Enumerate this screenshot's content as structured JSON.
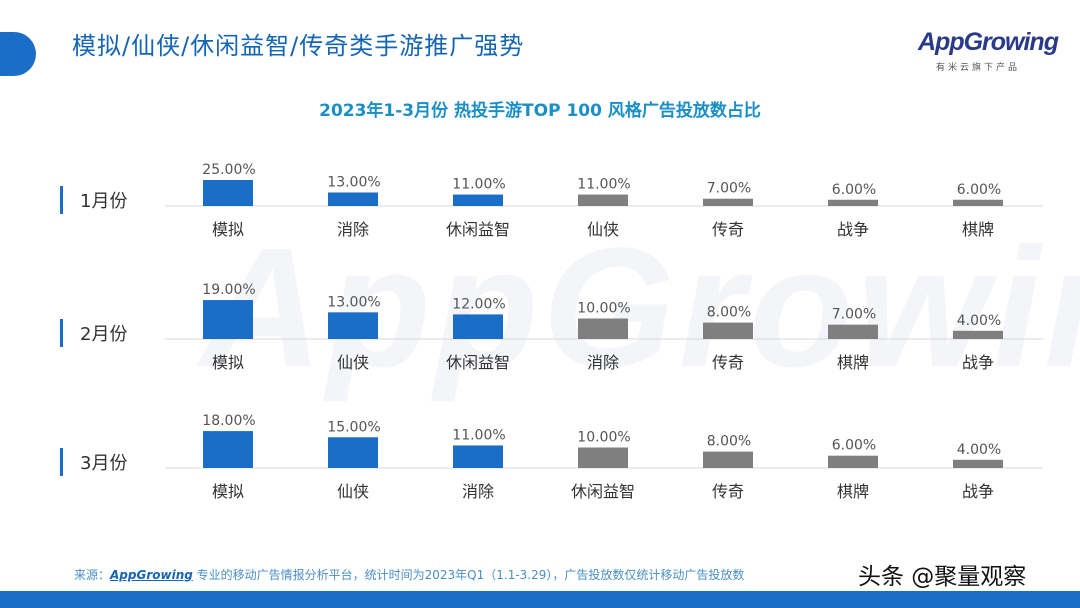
{
  "header": {
    "title": "模拟/仙侠/休闲益智/传奇类手游推广强势",
    "logo": "AppGrowing",
    "logo_sub": "有米云旗下产品"
  },
  "footer": {
    "source_label": "来源：",
    "source_brand": "AppGrowing",
    "source_text": " 专业的移动广告情报分析平台，统计时间为2023年Q1（1.1-3.29），广告投放数仅统计移动广告投放数",
    "brand": "头条 @聚量观察"
  },
  "colors": {
    "highlight": "#1a6ec7",
    "other": "#7f7f7f",
    "accent": "#1a6ec7"
  },
  "chart_data": {
    "type": "bar",
    "title": "2023年1-3月份 热投手游TOP 100 风格广告投放数占比",
    "panels": [
      {
        "label": "1月份",
        "categories": [
          "模拟",
          "消除",
          "休闲益智",
          "仙侠",
          "传奇",
          "战争",
          "棋牌"
        ],
        "values": [
          25,
          13,
          11,
          11,
          7,
          6,
          6
        ],
        "value_labels": [
          "25.00%",
          "13.00%",
          "11.00%",
          "11.00%",
          "7.00%",
          "6.00%",
          "6.00%"
        ]
      },
      {
        "label": "2月份",
        "categories": [
          "模拟",
          "仙侠",
          "休闲益智",
          "消除",
          "传奇",
          "棋牌",
          "战争"
        ],
        "values": [
          19,
          13,
          12,
          10,
          8,
          7,
          4
        ],
        "value_labels": [
          "19.00%",
          "13.00%",
          "12.00%",
          "10.00%",
          "8.00%",
          "7.00%",
          "4.00%"
        ]
      },
      {
        "label": "3月份",
        "categories": [
          "模拟",
          "仙侠",
          "消除",
          "休闲益智",
          "传奇",
          "棋牌",
          "战争"
        ],
        "values": [
          18,
          15,
          11,
          10,
          8,
          6,
          4
        ],
        "value_labels": [
          "18.00%",
          "15.00%",
          "11.00%",
          "10.00%",
          "8.00%",
          "6.00%",
          "4.00%"
        ]
      }
    ],
    "highlighted_top_n": 3,
    "grid": false
  }
}
